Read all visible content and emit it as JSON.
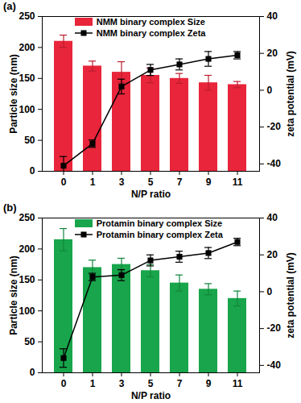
{
  "chart_data": [
    {
      "type": "bar",
      "title": "(a)",
      "x_label": "N/P ratio",
      "y_label": "Particle size (nm)",
      "y2_label": "zeta potential (mV)",
      "categories": [
        "0",
        "1",
        "3",
        "5",
        "7",
        "9",
        "11"
      ],
      "ylim": [
        0,
        250
      ],
      "yticks": [
        0,
        50,
        100,
        150,
        200,
        250
      ],
      "y2lim": [
        -44,
        40
      ],
      "y2ticks": [
        -40,
        -20,
        0,
        20,
        40
      ],
      "legend": "upper left",
      "grid": false,
      "series": [
        {
          "name": "NMM binary complex Size",
          "type": "bar",
          "color": "#e8253a",
          "values": [
            210,
            170,
            160,
            155,
            150,
            143,
            140
          ],
          "errors": [
            10,
            8,
            17,
            12,
            8,
            12,
            5
          ]
        },
        {
          "name": "NMM binary complex Zeta",
          "type": "line",
          "axis": "y2",
          "color": "#000000",
          "marker": "square",
          "values": [
            -41,
            -29,
            2,
            11,
            14,
            17,
            19
          ],
          "errors": [
            5,
            2,
            4,
            3,
            3,
            4,
            2
          ]
        }
      ]
    },
    {
      "type": "bar",
      "title": "(b)",
      "x_label": "N/P ratio",
      "y_label": "Particle size (nm)",
      "y2_label": "zeta potential (mV)",
      "categories": [
        "0",
        "1",
        "3",
        "5",
        "7",
        "9",
        "11"
      ],
      "ylim": [
        0,
        250
      ],
      "yticks": [
        0,
        50,
        100,
        150,
        200,
        250
      ],
      "y2lim": [
        -44,
        40
      ],
      "y2ticks": [
        -40,
        -20,
        0,
        20,
        40
      ],
      "legend": "upper left",
      "grid": false,
      "series": [
        {
          "name": "Protamin binary complex Size",
          "type": "bar",
          "color": "#18a54b",
          "values": [
            215,
            170,
            175,
            165,
            145,
            135,
            120
          ],
          "errors": [
            18,
            12,
            10,
            10,
            13,
            9,
            12
          ]
        },
        {
          "name": "Protamin binary complex Zeta",
          "type": "line",
          "axis": "y2",
          "color": "#000000",
          "marker": "square",
          "values": [
            -36,
            8,
            9,
            17,
            19,
            21,
            27
          ],
          "errors": [
            5,
            2,
            3,
            3,
            3,
            3,
            2
          ]
        }
      ]
    }
  ]
}
